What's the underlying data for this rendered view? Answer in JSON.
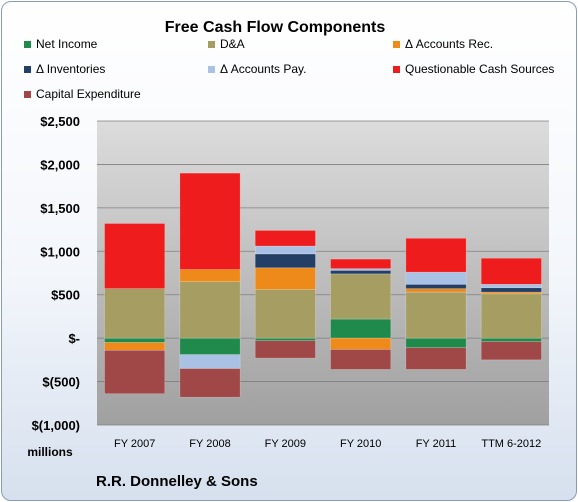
{
  "chart_data": {
    "type": "bar",
    "stacked": true,
    "title": "Free Cash Flow Components",
    "categories": [
      "FY 2007",
      "FY 2008",
      "FY 2009",
      "FY 2010",
      "FY 2011",
      "TTM 6-2012"
    ],
    "series": [
      {
        "name": "Net Income",
        "color": "#1f8a4c",
        "values": [
          -50,
          -190,
          -30,
          220,
          -110,
          -40
        ]
      },
      {
        "name": "D&A",
        "color": "#a69d63",
        "values": [
          570,
          650,
          560,
          520,
          530,
          510
        ]
      },
      {
        "name": "Δ Accounts Rec.",
        "color": "#ee8a1a",
        "values": [
          -90,
          140,
          250,
          -130,
          40,
          20
        ]
      },
      {
        "name": "Δ Inventories",
        "color": "#233f66",
        "values": [
          0,
          0,
          160,
          40,
          50,
          50
        ]
      },
      {
        "name": "Δ Accounts Pay.",
        "color": "#a9c1e4",
        "values": [
          0,
          -160,
          90,
          20,
          140,
          40
        ]
      },
      {
        "name": "Questionable Cash Sources",
        "color": "#ee1c1c",
        "values": [
          750,
          1110,
          180,
          110,
          390,
          300
        ]
      },
      {
        "name": "Capital Expenditure",
        "color": "#a04848",
        "values": [
          -500,
          -330,
          -200,
          -230,
          -250,
          -210
        ]
      }
    ],
    "y_ticks": [
      "$2,500",
      "$2,000",
      "$1,500",
      "$1,000",
      "$500",
      "$-",
      "$(500)",
      "$(1,000)"
    ],
    "y_tick_values": [
      2500,
      2000,
      1500,
      1000,
      500,
      0,
      -500,
      -1000
    ],
    "ylim": [
      -1000,
      2500
    ],
    "ylabel": "millions",
    "grid": true,
    "legend_position": "top"
  },
  "footer": "R.R. Donnelley & Sons"
}
